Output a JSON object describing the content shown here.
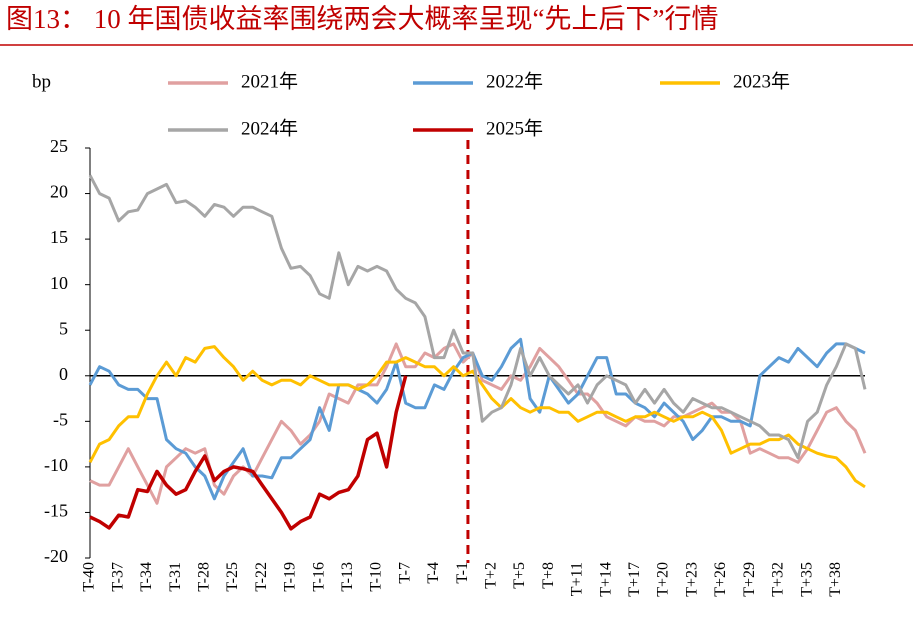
{
  "chart_data": {
    "type": "line",
    "title": "图13：  10 年国债收益率围绕两会大概率呈现“先上后下”行情",
    "ylabel": "bp",
    "categories": [
      "T-40",
      null,
      null,
      "T-37",
      null,
      null,
      "T-34",
      null,
      null,
      "T-31",
      null,
      null,
      "T-28",
      null,
      null,
      "T-25",
      null,
      null,
      "T-22",
      null,
      null,
      "T-19",
      null,
      null,
      "T-16",
      null,
      null,
      "T-13",
      null,
      null,
      "T-10",
      null,
      null,
      "T-7",
      null,
      null,
      "T-4",
      null,
      null,
      "T-1",
      null,
      null,
      "T+2",
      null,
      null,
      "T+5",
      null,
      null,
      "T+8",
      null,
      null,
      "T+11",
      null,
      null,
      "T+14",
      null,
      null,
      "T+17",
      null,
      null,
      "T+20",
      null,
      null,
      "T+23",
      null,
      null,
      "T+26",
      null,
      null,
      "T+29",
      null,
      null,
      "T+32",
      null,
      null,
      "T+35",
      null,
      null,
      "T+38",
      null,
      null,
      null
    ],
    "ylim": [
      -20,
      25
    ],
    "yticks": [
      -20,
      -15,
      -10,
      -5,
      0,
      5,
      10,
      15,
      20,
      25
    ],
    "series": [
      {
        "name": "2021年",
        "color": "#e0a0a0",
        "values": [
          -11.5,
          -12,
          -12,
          -10,
          -8,
          -10,
          -12,
          -14,
          -10,
          -9,
          -8,
          -8.5,
          -8,
          -12,
          -13,
          -11,
          -10,
          -11,
          -9,
          -7,
          -5,
          -6,
          -7.5,
          -6.5,
          -5,
          -2,
          -2.5,
          -3,
          -1,
          -1,
          -1,
          1,
          3.5,
          1,
          1,
          2.5,
          2,
          3,
          3.5,
          1.5,
          2.5,
          -0.5,
          -1,
          -1.5,
          0,
          -0.5,
          1,
          3,
          2,
          1,
          -0.5,
          -2,
          -2,
          -3,
          -4.5,
          -5,
          -5.5,
          -4.5,
          -5,
          -5,
          -5.5,
          -4.5,
          -4.5,
          -4,
          -3.5,
          -3,
          -4,
          -4,
          -5,
          -8.5,
          -8,
          -8.5,
          -9,
          -9,
          -9.5,
          -8,
          -6,
          -4,
          -3.5,
          -5,
          -6,
          -8.5
        ]
      },
      {
        "name": "2022年",
        "color": "#5b9bd5",
        "values": [
          -1,
          1,
          0.5,
          -1,
          -1.5,
          -1.5,
          -2.5,
          -2.5,
          -7,
          -8,
          -8.5,
          -10,
          -11,
          -13.5,
          -11,
          -9.5,
          -8,
          -11,
          -11,
          -11.2,
          -9,
          -9,
          -8,
          -7,
          -3.5,
          -6,
          -1,
          -1,
          -1.5,
          -2,
          -3,
          -1.5,
          1.5,
          -3,
          -3.5,
          -3.5,
          -1,
          -1.5,
          0.5,
          2,
          2.5,
          0,
          -0.5,
          1,
          3,
          4,
          -2.5,
          -4,
          0,
          -1.5,
          -3,
          -2,
          0,
          2,
          2,
          -2,
          -2,
          -3,
          -3.5,
          -4.5,
          -3,
          -4,
          -5,
          -7,
          -6,
          -4.5,
          -4.5,
          -5,
          -5,
          -5.5,
          0,
          1,
          2,
          1.5,
          3,
          2,
          1,
          2.5,
          3.5,
          3.5,
          3,
          2.5
        ]
      },
      {
        "name": "2023年",
        "color": "#ffc000",
        "values": [
          -9.5,
          -7.5,
          -7,
          -5.5,
          -4.5,
          -4.5,
          -2,
          0,
          1.5,
          0,
          2,
          1.5,
          3,
          3.2,
          2,
          1,
          -0.5,
          0.5,
          -0.5,
          -1,
          -0.5,
          -0.5,
          -1,
          0,
          -0.5,
          -1,
          -1,
          -1,
          -1.5,
          -1,
          0,
          1.5,
          1.5,
          2,
          1.5,
          1,
          1,
          0,
          1,
          0,
          0.5,
          -1,
          -2.5,
          -3.5,
          -2.5,
          -3.5,
          -4,
          -3.5,
          -3.5,
          -4,
          -4,
          -5,
          -4.5,
          -4,
          -4,
          -4.5,
          -5,
          -4.5,
          -4.5,
          -4,
          -4.5,
          -5,
          -4.5,
          -4.5,
          -4,
          -4.5,
          -6,
          -8.5,
          -8,
          -7.5,
          -7.5,
          -7,
          -7,
          -6.5,
          -7.5,
          -8,
          -8.5,
          -8.8,
          -9,
          -10,
          -11.5,
          -12.2
        ]
      },
      {
        "name": "2024年",
        "color": "#a6a6a6",
        "values": [
          22,
          20,
          19.5,
          17,
          18,
          18.2,
          20,
          20.5,
          21,
          19,
          19.2,
          18.5,
          17.5,
          18.8,
          18.5,
          17.5,
          18.5,
          18.5,
          18,
          17.5,
          14,
          11.8,
          12,
          11,
          9,
          8.5,
          13.5,
          10,
          12,
          11.5,
          12,
          11.5,
          9.5,
          8.5,
          8,
          6.5,
          2,
          2,
          5,
          2.5,
          2.5,
          -5,
          -4,
          -3.5,
          -1,
          3,
          0,
          2,
          0,
          -1,
          -2,
          -1,
          -3,
          -1,
          0,
          -0.5,
          -1,
          -3,
          -1.5,
          -3,
          -1.5,
          -3,
          -4,
          -2.5,
          -3,
          -3.5,
          -3.5,
          -4,
          -4.5,
          -5,
          -5.5,
          -6.5,
          -6.5,
          -7,
          -9,
          -5,
          -4,
          -1,
          1,
          3.5,
          3,
          -1.5
        ]
      },
      {
        "name": "2025年",
        "color": "#c00000",
        "values": [
          -15.5,
          -16,
          -16.7,
          -15.3,
          -15.5,
          -12.5,
          -12.7,
          -10.5,
          -12,
          -13,
          -12.5,
          -10.5,
          -8.8,
          -11.5,
          -10.5,
          -10,
          -10.2,
          -10.5,
          -12,
          -13.5,
          -15,
          -16.8,
          -16,
          -15.5,
          -13,
          -13.5,
          -12.8,
          -12.5,
          -11,
          -7,
          -6.3,
          -10,
          -4,
          0,
          null,
          null,
          null,
          null,
          null,
          null,
          null,
          null,
          null,
          null,
          null,
          null,
          null,
          null,
          null,
          null,
          null,
          null,
          null,
          null,
          null,
          null,
          null,
          null,
          null,
          null,
          null,
          null,
          null,
          null,
          null,
          null,
          null,
          null,
          null,
          null,
          null,
          null,
          null,
          null,
          null,
          null,
          null,
          null,
          null,
          null,
          null,
          null
        ]
      }
    ]
  }
}
